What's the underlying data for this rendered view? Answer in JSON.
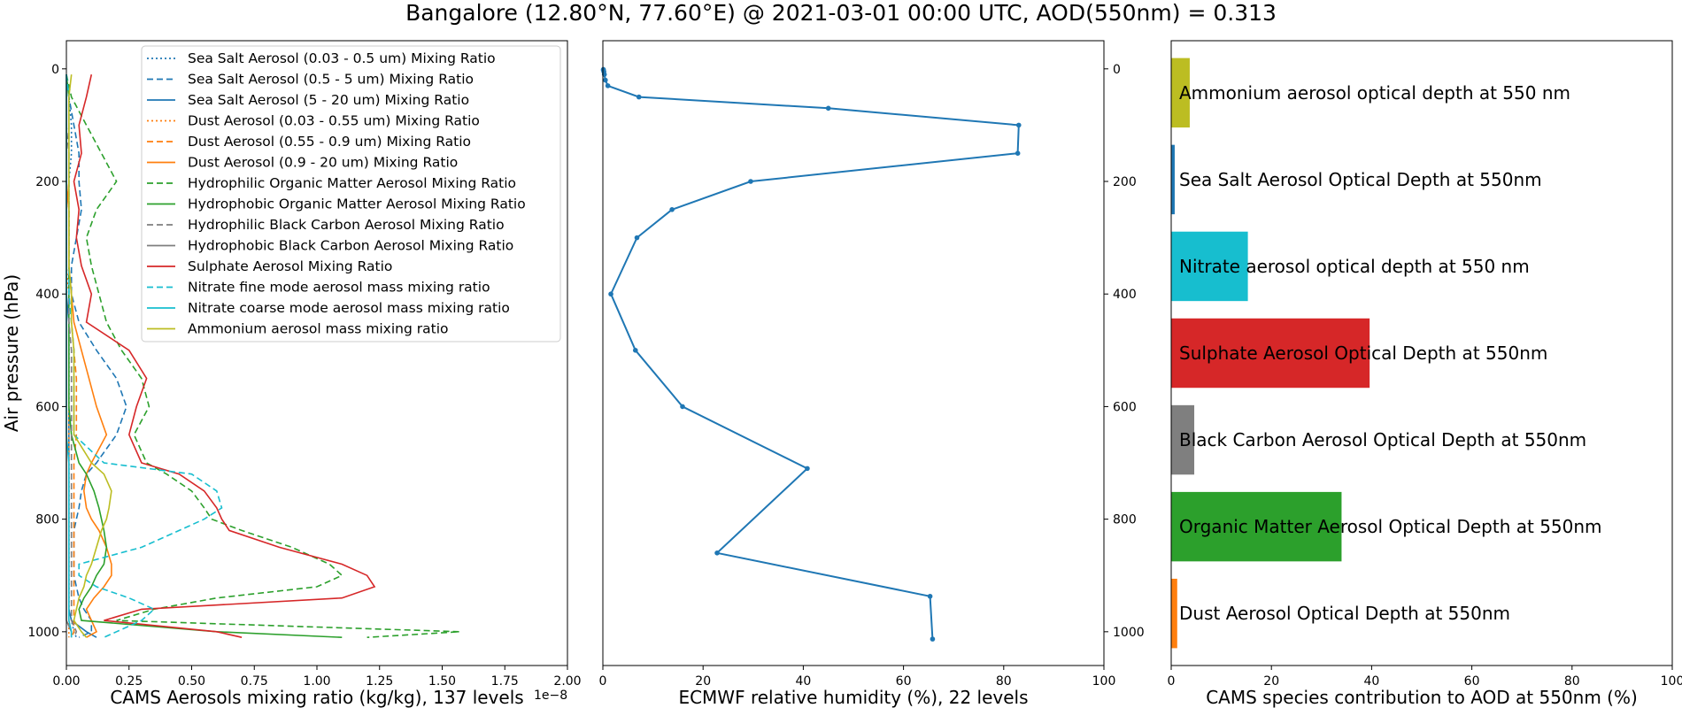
{
  "title": "Bangalore (12.80°N, 77.60°E) @ 2021-03-01 00:00 UTC, AOD(550nm) = 0.313",
  "chart_data": [
    {
      "type": "line",
      "xlabel": "CAMS Aerosols mixing ratio (kg/kg), 137 levels",
      "ylabel": "Air pressure (hPa)",
      "x_exponent_label": "1e−8",
      "xlim": [
        0,
        2.0
      ],
      "ylim": [
        1060,
        -50
      ],
      "x_ticks": [
        "0.00",
        "0.25",
        "0.50",
        "0.75",
        "1.00",
        "1.25",
        "1.50",
        "1.75",
        "2.00"
      ],
      "y_ticks": [
        "0",
        "200",
        "400",
        "600",
        "800",
        "1000"
      ],
      "legend": "top-right",
      "pressure": [
        10,
        50,
        100,
        150,
        200,
        250,
        300,
        350,
        400,
        450,
        500,
        550,
        600,
        650,
        700,
        720,
        750,
        780,
        800,
        820,
        850,
        880,
        900,
        920,
        940,
        960,
        980,
        1000,
        1010
      ],
      "series": [
        {
          "name": "Sea Salt Aerosol (0.03 - 0.5 um) Mixing Ratio",
          "color": "#1f77b4",
          "dash": "dotted",
          "values": [
            0,
            0.01,
            0.02,
            0.02,
            0.01,
            0.01,
            0.01,
            0.01,
            0.01,
            0.01,
            0.01,
            0.01,
            0.01,
            0.01,
            0.01,
            0.01,
            0.01,
            0.01,
            0.01,
            0.01,
            0.01,
            0.01,
            0.01,
            0.01,
            0.01,
            0.01,
            0.02,
            0.03,
            0.04
          ]
        },
        {
          "name": "Sea Salt Aerosol (0.5 - 5 um) Mixing Ratio",
          "color": "#1f77b4",
          "dash": "dashed",
          "values": [
            0,
            0.01,
            0.03,
            0.05,
            0.05,
            0.06,
            0.04,
            0.02,
            0.02,
            0.05,
            0.12,
            0.2,
            0.24,
            0.2,
            0.12,
            0.08,
            0.06,
            0.05,
            0.04,
            0.03,
            0.03,
            0.03,
            0.03,
            0.04,
            0.05,
            0.07,
            0.1,
            0.1,
            0.05
          ]
        },
        {
          "name": "Sea Salt Aerosol (5 - 20 um) Mixing Ratio",
          "color": "#1f77b4",
          "dash": "solid",
          "values": [
            0,
            0,
            0,
            0,
            0,
            0,
            0,
            0,
            0,
            0.01,
            0.01,
            0.01,
            0.01,
            0.01,
            0.01,
            0.01,
            0.01,
            0.01,
            0.01,
            0.01,
            0.01,
            0.01,
            0.01,
            0.01,
            0.01,
            0.01,
            0.02,
            0.08,
            0.12
          ]
        },
        {
          "name": "Dust Aerosol (0.03 - 0.55 um) Mixing Ratio",
          "color": "#ff7f0e",
          "dash": "dotted",
          "values": [
            0,
            0,
            0,
            0,
            0,
            0,
            0,
            0,
            0.01,
            0.01,
            0.01,
            0.01,
            0.01,
            0.01,
            0.01,
            0.01,
            0.01,
            0.01,
            0.01,
            0.01,
            0.01,
            0.01,
            0.01,
            0.01,
            0.01,
            0.01,
            0.01,
            0.01,
            0.01
          ]
        },
        {
          "name": "Dust Aerosol (0.55 - 0.9 um) Mixing Ratio",
          "color": "#ff7f0e",
          "dash": "dashed",
          "values": [
            0,
            0,
            0,
            0,
            0,
            0.01,
            0.01,
            0.01,
            0.02,
            0.02,
            0.03,
            0.04,
            0.04,
            0.04,
            0.03,
            0.03,
            0.03,
            0.03,
            0.03,
            0.03,
            0.03,
            0.03,
            0.03,
            0.03,
            0.03,
            0.03,
            0.03,
            0.03,
            0.02
          ]
        },
        {
          "name": "Dust Aerosol (0.9 - 20 um) Mixing Ratio",
          "color": "#ff7f0e",
          "dash": "solid",
          "values": [
            0,
            0,
            0,
            0,
            0,
            0.01,
            0.01,
            0.01,
            0.02,
            0.03,
            0.06,
            0.09,
            0.12,
            0.16,
            0.1,
            0.08,
            0.07,
            0.08,
            0.1,
            0.13,
            0.16,
            0.18,
            0.18,
            0.15,
            0.11,
            0.08,
            0.1,
            0.12,
            0.08
          ]
        },
        {
          "name": "Hydrophilic Organic Matter Aerosol Mixing Ratio",
          "color": "#2ca02c",
          "dash": "dashed",
          "values": [
            0,
            0.02,
            0.08,
            0.14,
            0.2,
            0.12,
            0.08,
            0.1,
            0.13,
            0.16,
            0.22,
            0.3,
            0.33,
            0.27,
            0.32,
            0.4,
            0.5,
            0.55,
            0.58,
            0.7,
            0.9,
            1.05,
            1.1,
            1.0,
            0.6,
            0.35,
            0.2,
            1.57,
            1.2
          ]
        },
        {
          "name": "Hydrophobic Organic Matter Aerosol Mixing Ratio",
          "color": "#2ca02c",
          "dash": "solid",
          "values": [
            0,
            0.01,
            0.01,
            0.01,
            0.01,
            0.01,
            0.01,
            0.01,
            0.01,
            0.01,
            0.01,
            0.01,
            0.01,
            0.02,
            0.05,
            0.08,
            0.11,
            0.13,
            0.14,
            0.15,
            0.16,
            0.15,
            0.12,
            0.1,
            0.07,
            0.05,
            0.06,
            0.6,
            1.1
          ]
        },
        {
          "name": "Hydrophilic Black Carbon Aerosol Mixing Ratio",
          "color": "#7f7f7f",
          "dash": "dashed",
          "values": [
            0,
            0,
            0,
            0.01,
            0.01,
            0.01,
            0.01,
            0.01,
            0.01,
            0.01,
            0.02,
            0.02,
            0.02,
            0.02,
            0.02,
            0.02,
            0.02,
            0.02,
            0.02,
            0.02,
            0.02,
            0.02,
            0.02,
            0.02,
            0.02,
            0.02,
            0.02,
            0.04,
            0.03
          ]
        },
        {
          "name": "Hydrophobic Black Carbon Aerosol Mixing Ratio",
          "color": "#7f7f7f",
          "dash": "solid",
          "values": [
            0,
            0,
            0,
            0,
            0,
            0,
            0,
            0,
            0,
            0,
            0,
            0,
            0,
            0,
            0,
            0,
            0,
            0,
            0,
            0,
            0,
            0,
            0,
            0,
            0,
            0,
            0,
            0.02,
            0.02
          ]
        },
        {
          "name": "Sulphate Aerosol Mixing Ratio",
          "color": "#d62728",
          "dash": "solid",
          "values": [
            0.1,
            0.08,
            0.05,
            0.06,
            0.03,
            0.05,
            0.04,
            0.06,
            0.1,
            0.08,
            0.25,
            0.32,
            0.28,
            0.25,
            0.3,
            0.45,
            0.55,
            0.6,
            0.62,
            0.65,
            0.85,
            1.1,
            1.2,
            1.23,
            1.1,
            0.3,
            0.15,
            0.6,
            0.7
          ]
        },
        {
          "name": "Nitrate fine mode aerosol mass mixing ratio",
          "color": "#17becf",
          "dash": "dashed",
          "values": [
            0,
            0.01,
            0.01,
            0.01,
            0.01,
            0.01,
            0.01,
            0.01,
            0.01,
            0.02,
            0.03,
            0.03,
            0.03,
            0.03,
            0.15,
            0.5,
            0.6,
            0.62,
            0.55,
            0.45,
            0.3,
            0.05,
            0.05,
            0.12,
            0.25,
            0.35,
            0.3,
            0.2,
            0.15
          ]
        },
        {
          "name": "Nitrate coarse mode aerosol mass mixing ratio",
          "color": "#17becf",
          "dash": "solid",
          "values": [
            0,
            0,
            0,
            0,
            0,
            0,
            0,
            0,
            0,
            0,
            0,
            0,
            0,
            0,
            0.01,
            0.01,
            0.01,
            0.01,
            0.01,
            0.01,
            0.01,
            0.01,
            0.01,
            0.01,
            0.01,
            0.01,
            0.01,
            0.02,
            0.02
          ]
        },
        {
          "name": "Ammonium aerosol mass mixing ratio",
          "color": "#bcbd22",
          "dash": "solid",
          "values": [
            0.02,
            0.01,
            0.01,
            0.01,
            0.01,
            0.01,
            0.01,
            0.01,
            0.02,
            0.02,
            0.03,
            0.03,
            0.03,
            0.03,
            0.1,
            0.15,
            0.18,
            0.17,
            0.16,
            0.14,
            0.12,
            0.1,
            0.08,
            0.07,
            0.05,
            0.04,
            0.03,
            0.06,
            0.08
          ]
        }
      ]
    },
    {
      "type": "line",
      "xlabel": "ECMWF relative humidity (%), 22 levels",
      "xlim": [
        0,
        100
      ],
      "ylim": [
        1060,
        -50
      ],
      "x_ticks": [
        "0",
        "20",
        "40",
        "60",
        "80",
        "100"
      ],
      "y_ticks": [
        "0",
        "200",
        "400",
        "600",
        "800",
        "1000"
      ],
      "color": "#1f77b4",
      "points": [
        {
          "rh": 0.1,
          "p": 1
        },
        {
          "rh": 0.1,
          "p": 2
        },
        {
          "rh": 0.2,
          "p": 5
        },
        {
          "rh": 0.3,
          "p": 10
        },
        {
          "rh": 0.5,
          "p": 20
        },
        {
          "rh": 1.0,
          "p": 30
        },
        {
          "rh": 7.2,
          "p": 50
        },
        {
          "rh": 45.0,
          "p": 70
        },
        {
          "rh": 83.0,
          "p": 100
        },
        {
          "rh": 82.8,
          "p": 150
        },
        {
          "rh": 29.5,
          "p": 200
        },
        {
          "rh": 13.8,
          "p": 250
        },
        {
          "rh": 6.8,
          "p": 300
        },
        {
          "rh": 1.6,
          "p": 400
        },
        {
          "rh": 6.5,
          "p": 500
        },
        {
          "rh": 15.9,
          "p": 600
        },
        {
          "rh": 40.8,
          "p": 710
        },
        {
          "rh": 22.8,
          "p": 860
        },
        {
          "rh": 65.3,
          "p": 937
        },
        {
          "rh": 65.8,
          "p": 1013
        }
      ]
    },
    {
      "type": "bar",
      "orientation": "horizontal",
      "xlabel": "CAMS species contribution to AOD at 550nm (%)",
      "xlim": [
        0,
        100
      ],
      "x_ticks": [
        "0",
        "20",
        "40",
        "60",
        "80",
        "100"
      ],
      "categories": [
        "Ammonium aerosol optical depth at 550 nm",
        "Sea Salt Aerosol Optical Depth at 550nm",
        "Nitrate aerosol optical depth at 550 nm",
        "Sulphate Aerosol Optical Depth at 550nm",
        "Black Carbon Aerosol Optical Depth at 550nm",
        "Organic Matter Aerosol Optical Depth at 550nm",
        "Dust Aerosol Optical Depth at 550nm"
      ],
      "values": [
        3.7,
        0.7,
        15.3,
        39.6,
        4.6,
        34.0,
        1.2
      ],
      "colors": [
        "#bcbd22",
        "#1f77b4",
        "#17becf",
        "#d62728",
        "#7f7f7f",
        "#2ca02c",
        "#ff7f0e"
      ]
    }
  ]
}
